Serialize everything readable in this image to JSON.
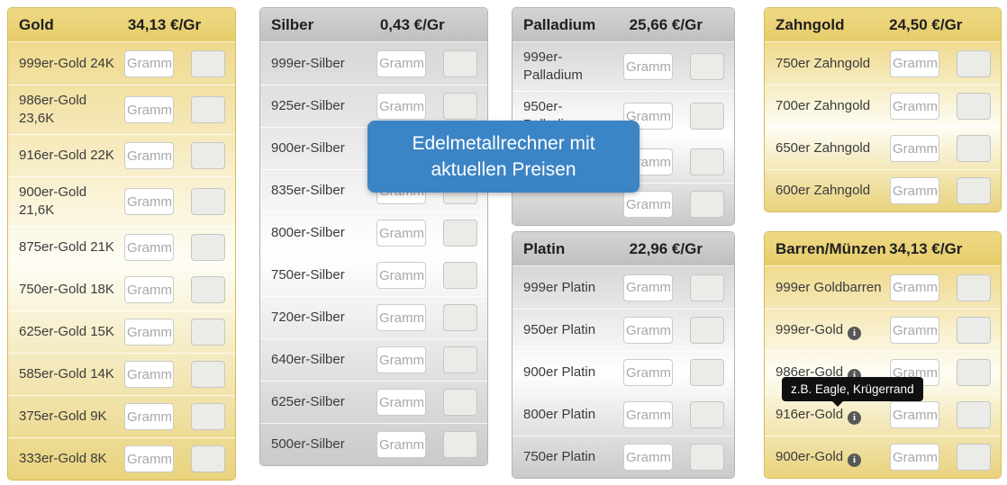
{
  "overlay_tooltip": {
    "text": "Edelmetallrechner mit aktuellen Preisen"
  },
  "info_tooltip": {
    "text": "z.B. Eagle, Krügerrand"
  },
  "inputs": {
    "gramm_placeholder": "Gramm"
  },
  "colors": {
    "gold_header": "#e8cf72",
    "gold_body_edge": "#eed98c",
    "gray_header": "#c6c6c6",
    "overlay_tooltip_bg": "#3b84c5",
    "info_tooltip_bg": "#101010",
    "info_icon_bg": "#575757"
  },
  "panels": [
    {
      "id": "gold",
      "title": "Gold",
      "price": "34,13 €/Gr",
      "rows": [
        {
          "label": "999er-Gold 24K",
          "info": false
        },
        {
          "label": "986er-Gold 23,6K",
          "info": false
        },
        {
          "label": "916er-Gold 22K",
          "info": false
        },
        {
          "label": "900er-Gold 21,6K",
          "info": false
        },
        {
          "label": "875er-Gold 21K",
          "info": false
        },
        {
          "label": "750er-Gold 18K",
          "info": false
        },
        {
          "label": "625er-Gold 15K",
          "info": false
        },
        {
          "label": "585er-Gold 14K",
          "info": false
        },
        {
          "label": "375er-Gold 9K",
          "info": false
        },
        {
          "label": "333er-Gold 8K",
          "info": false
        }
      ]
    },
    {
      "id": "silber",
      "title": "Silber",
      "price": "0,43 €/Gr",
      "rows": [
        {
          "label": "999er-Silber",
          "info": false
        },
        {
          "label": "925er-Silber",
          "info": false
        },
        {
          "label": "900er-Silber",
          "info": false
        },
        {
          "label": "835er-Silber",
          "info": false
        },
        {
          "label": "800er-Silber",
          "info": false
        },
        {
          "label": "750er-Silber",
          "info": false
        },
        {
          "label": "720er-Silber",
          "info": false
        },
        {
          "label": "640er-Silber",
          "info": false
        },
        {
          "label": "625er-Silber",
          "info": false
        },
        {
          "label": "500er-Silber",
          "info": false
        }
      ]
    },
    {
      "id": "palladium",
      "title": "Palladium",
      "price": "25,66 €/Gr",
      "rows": [
        {
          "label": "999er-Palladium",
          "info": false
        },
        {
          "label": "950er-Palladium",
          "info": false
        },
        {
          "label": "",
          "info": false
        },
        {
          "label": "",
          "info": false
        }
      ]
    },
    {
      "id": "platin",
      "title": "Platin",
      "price": "22,96 €/Gr",
      "rows": [
        {
          "label": "999er Platin",
          "info": false
        },
        {
          "label": "950er Platin",
          "info": false
        },
        {
          "label": "900er Platin",
          "info": false
        },
        {
          "label": "800er Platin",
          "info": false
        },
        {
          "label": "750er Platin",
          "info": false
        }
      ]
    },
    {
      "id": "zahngold",
      "title": "Zahngold",
      "price": "24,50 €/Gr",
      "rows": [
        {
          "label": "750er Zahngold",
          "info": false
        },
        {
          "label": "700er Zahngold",
          "info": false
        },
        {
          "label": "650er Zahngold",
          "info": false
        },
        {
          "label": "600er Zahngold",
          "info": false
        }
      ]
    },
    {
      "id": "barren",
      "title": "Barren/Münzen",
      "price": "34,13 €/Gr",
      "rows": [
        {
          "label": "999er Goldbarren",
          "info": false
        },
        {
          "label": "999er-Gold",
          "info": true
        },
        {
          "label": "986er-Gold",
          "info": true
        },
        {
          "label": "916er-Gold",
          "info": true
        },
        {
          "label": "900er-Gold",
          "info": true
        }
      ]
    }
  ]
}
